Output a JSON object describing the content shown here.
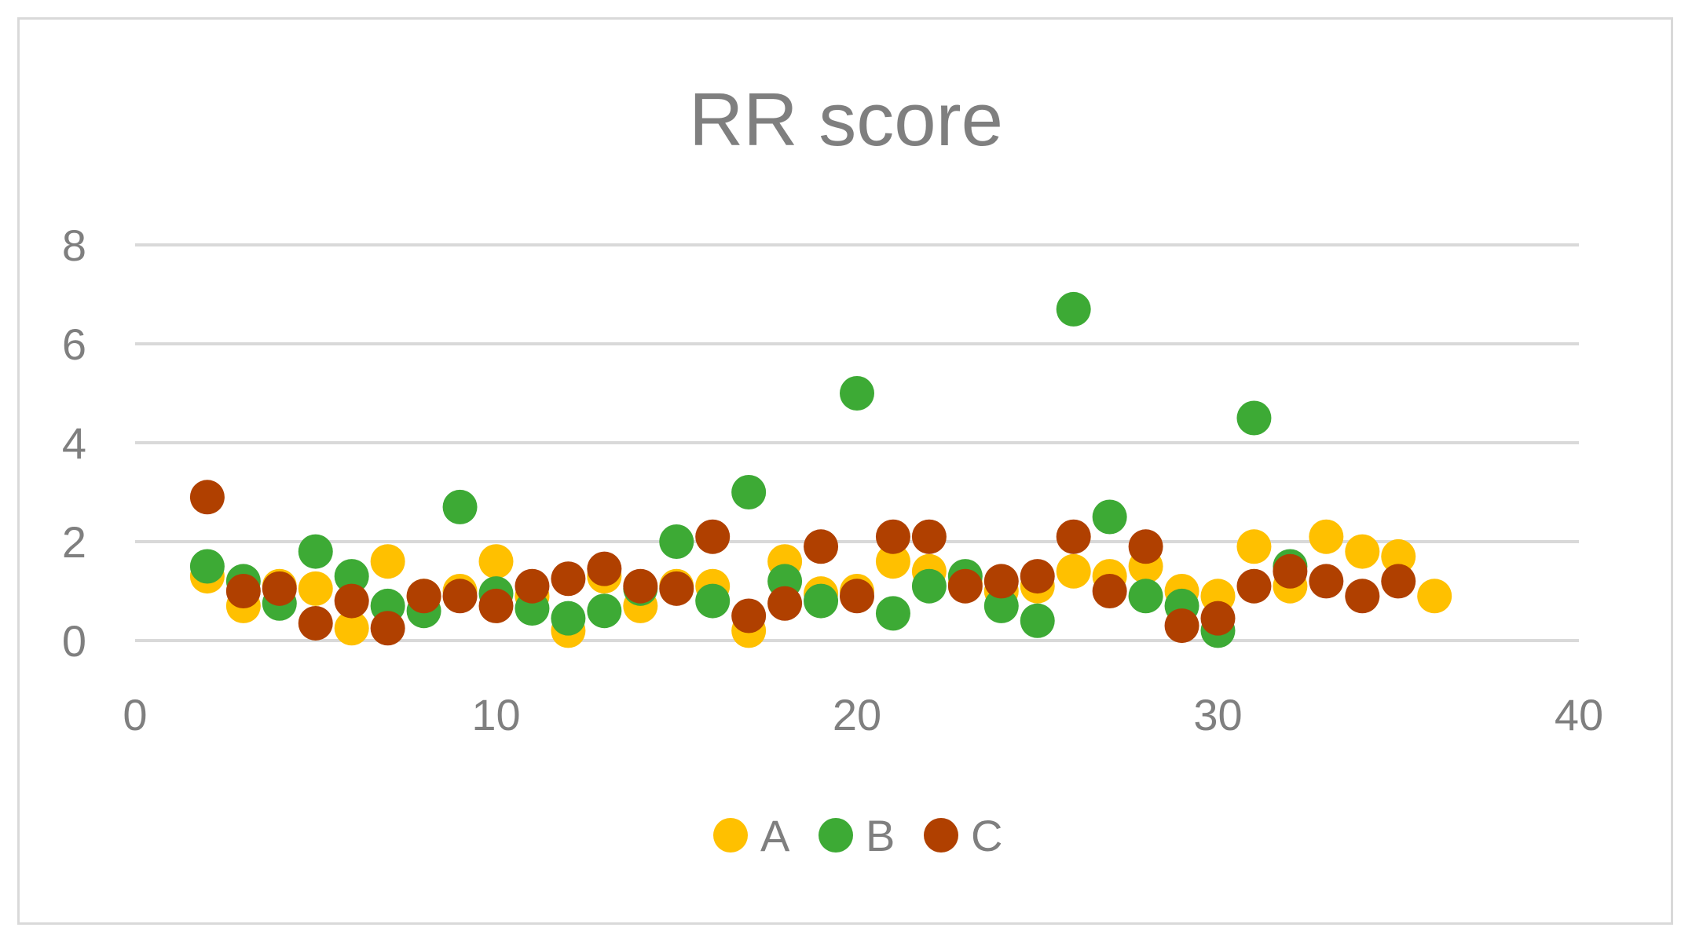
{
  "chart_data": {
    "type": "scatter",
    "title": "RR  score",
    "xlabel": "",
    "ylabel": "",
    "xlim": [
      0,
      40
    ],
    "ylim": [
      0,
      8
    ],
    "x_ticks": [
      "0",
      "10",
      "20",
      "30",
      "40"
    ],
    "y_ticks": [
      "0",
      "2",
      "4",
      "6",
      "8"
    ],
    "grid": "horizontal",
    "legend_position": "bottom",
    "series": [
      {
        "name": "A",
        "color": "#FFC000",
        "points": [
          [
            2,
            1.3
          ],
          [
            3,
            0.7
          ],
          [
            4,
            1.1
          ],
          [
            5,
            1.05
          ],
          [
            6,
            0.25
          ],
          [
            7,
            1.6
          ],
          [
            8,
            0.9
          ],
          [
            9,
            1.0
          ],
          [
            10,
            1.6
          ],
          [
            11,
            0.9
          ],
          [
            12,
            0.2
          ],
          [
            13,
            1.3
          ],
          [
            14,
            0.7
          ],
          [
            15,
            1.1
          ],
          [
            16,
            1.1
          ],
          [
            17,
            0.2
          ],
          [
            18,
            1.6
          ],
          [
            19,
            0.95
          ],
          [
            20,
            1.0
          ],
          [
            21,
            1.6
          ],
          [
            22,
            1.4
          ],
          [
            23,
            1.15
          ],
          [
            24,
            1.0
          ],
          [
            25,
            1.1
          ],
          [
            26,
            1.4
          ],
          [
            27,
            1.3
          ],
          [
            28,
            1.5
          ],
          [
            29,
            1.0
          ],
          [
            30,
            0.9
          ],
          [
            31,
            1.9
          ],
          [
            32,
            1.1
          ],
          [
            33,
            2.1
          ],
          [
            34,
            1.8
          ],
          [
            35,
            1.7
          ],
          [
            36,
            0.9
          ]
        ]
      },
      {
        "name": "B",
        "color": "#3DAA35",
        "points": [
          [
            2,
            1.5
          ],
          [
            3,
            1.2
          ],
          [
            4,
            0.75
          ],
          [
            5,
            1.8
          ],
          [
            6,
            1.3
          ],
          [
            7,
            0.7
          ],
          [
            8,
            0.6
          ],
          [
            9,
            2.7
          ],
          [
            10,
            0.95
          ],
          [
            11,
            0.65
          ],
          [
            12,
            0.45
          ],
          [
            13,
            0.6
          ],
          [
            14,
            1.05
          ],
          [
            15,
            2.0
          ],
          [
            16,
            0.8
          ],
          [
            17,
            3.0
          ],
          [
            18,
            1.2
          ],
          [
            19,
            0.8
          ],
          [
            20,
            5.0
          ],
          [
            21,
            0.55
          ],
          [
            22,
            1.1
          ],
          [
            23,
            1.3
          ],
          [
            24,
            0.7
          ],
          [
            25,
            0.4
          ],
          [
            26,
            6.7
          ],
          [
            27,
            2.5
          ],
          [
            28,
            0.9
          ],
          [
            29,
            0.7
          ],
          [
            30,
            0.2
          ],
          [
            31,
            4.5
          ],
          [
            32,
            1.5
          ]
        ]
      },
      {
        "name": "C",
        "color": "#B04000",
        "points": [
          [
            2,
            2.9
          ],
          [
            3,
            1.0
          ],
          [
            4,
            1.05
          ],
          [
            5,
            0.35
          ],
          [
            6,
            0.8
          ],
          [
            7,
            0.25
          ],
          [
            8,
            0.9
          ],
          [
            9,
            0.9
          ],
          [
            10,
            0.7
          ],
          [
            11,
            1.1
          ],
          [
            12,
            1.25
          ],
          [
            13,
            1.45
          ],
          [
            14,
            1.1
          ],
          [
            15,
            1.05
          ],
          [
            16,
            2.1
          ],
          [
            17,
            0.5
          ],
          [
            18,
            0.75
          ],
          [
            19,
            1.9
          ],
          [
            20,
            0.9
          ],
          [
            21,
            2.1
          ],
          [
            22,
            2.1
          ],
          [
            23,
            1.1
          ],
          [
            24,
            1.2
          ],
          [
            25,
            1.3
          ],
          [
            26,
            2.1
          ],
          [
            27,
            1.0
          ],
          [
            28,
            1.9
          ],
          [
            29,
            0.3
          ],
          [
            30,
            0.45
          ],
          [
            31,
            1.1
          ],
          [
            32,
            1.4
          ],
          [
            33,
            1.2
          ],
          [
            34,
            0.9
          ],
          [
            35,
            1.2
          ]
        ]
      }
    ]
  }
}
